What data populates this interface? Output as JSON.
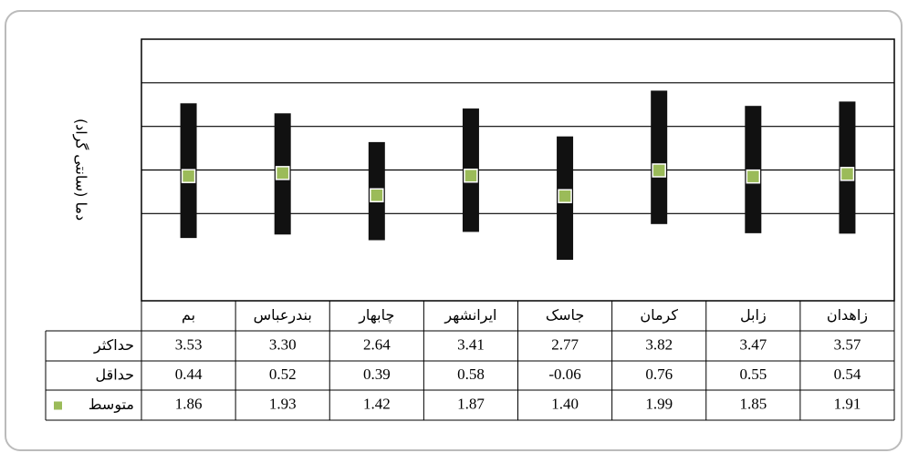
{
  "chart_data": {
    "type": "range",
    "y_axis_label": "دما (سانتی گراد)",
    "categories": [
      "بم",
      "بندرعباس",
      "چابهار",
      "ایرانشهر",
      "جاسک",
      "کرمان",
      "زابل",
      "زاهدان"
    ],
    "series": [
      {
        "name": "حداکثر",
        "color": "#111111",
        "values": [
          3.53,
          3.3,
          2.64,
          3.41,
          2.77,
          3.82,
          3.47,
          3.57
        ],
        "value_labels": [
          "3.53",
          "3.30",
          "2.64",
          "3.41",
          "2.77",
          "3.82",
          "3.47",
          "3.57"
        ]
      },
      {
        "name": "حداقل",
        "color": "#111111",
        "values": [
          0.44,
          0.52,
          0.39,
          0.58,
          -0.06,
          0.76,
          0.55,
          0.54
        ],
        "value_labels": [
          "0.44",
          "0.52",
          "0.39",
          "0.58",
          "-0.06",
          "0.76",
          "0.55",
          "0.54"
        ]
      },
      {
        "name": "متوسط",
        "color": "#9bbb59",
        "values": [
          1.86,
          1.93,
          1.42,
          1.87,
          1.4,
          1.99,
          1.85,
          1.91
        ],
        "value_labels": [
          "1.86",
          "1.93",
          "1.42",
          "1.87",
          "1.40",
          "1.99",
          "1.85",
          "1.91"
        ]
      }
    ],
    "ylim": [
      -1,
      5
    ],
    "yticks": [
      1,
      2,
      3,
      4
    ],
    "ytick_labels": false,
    "grid": true
  }
}
